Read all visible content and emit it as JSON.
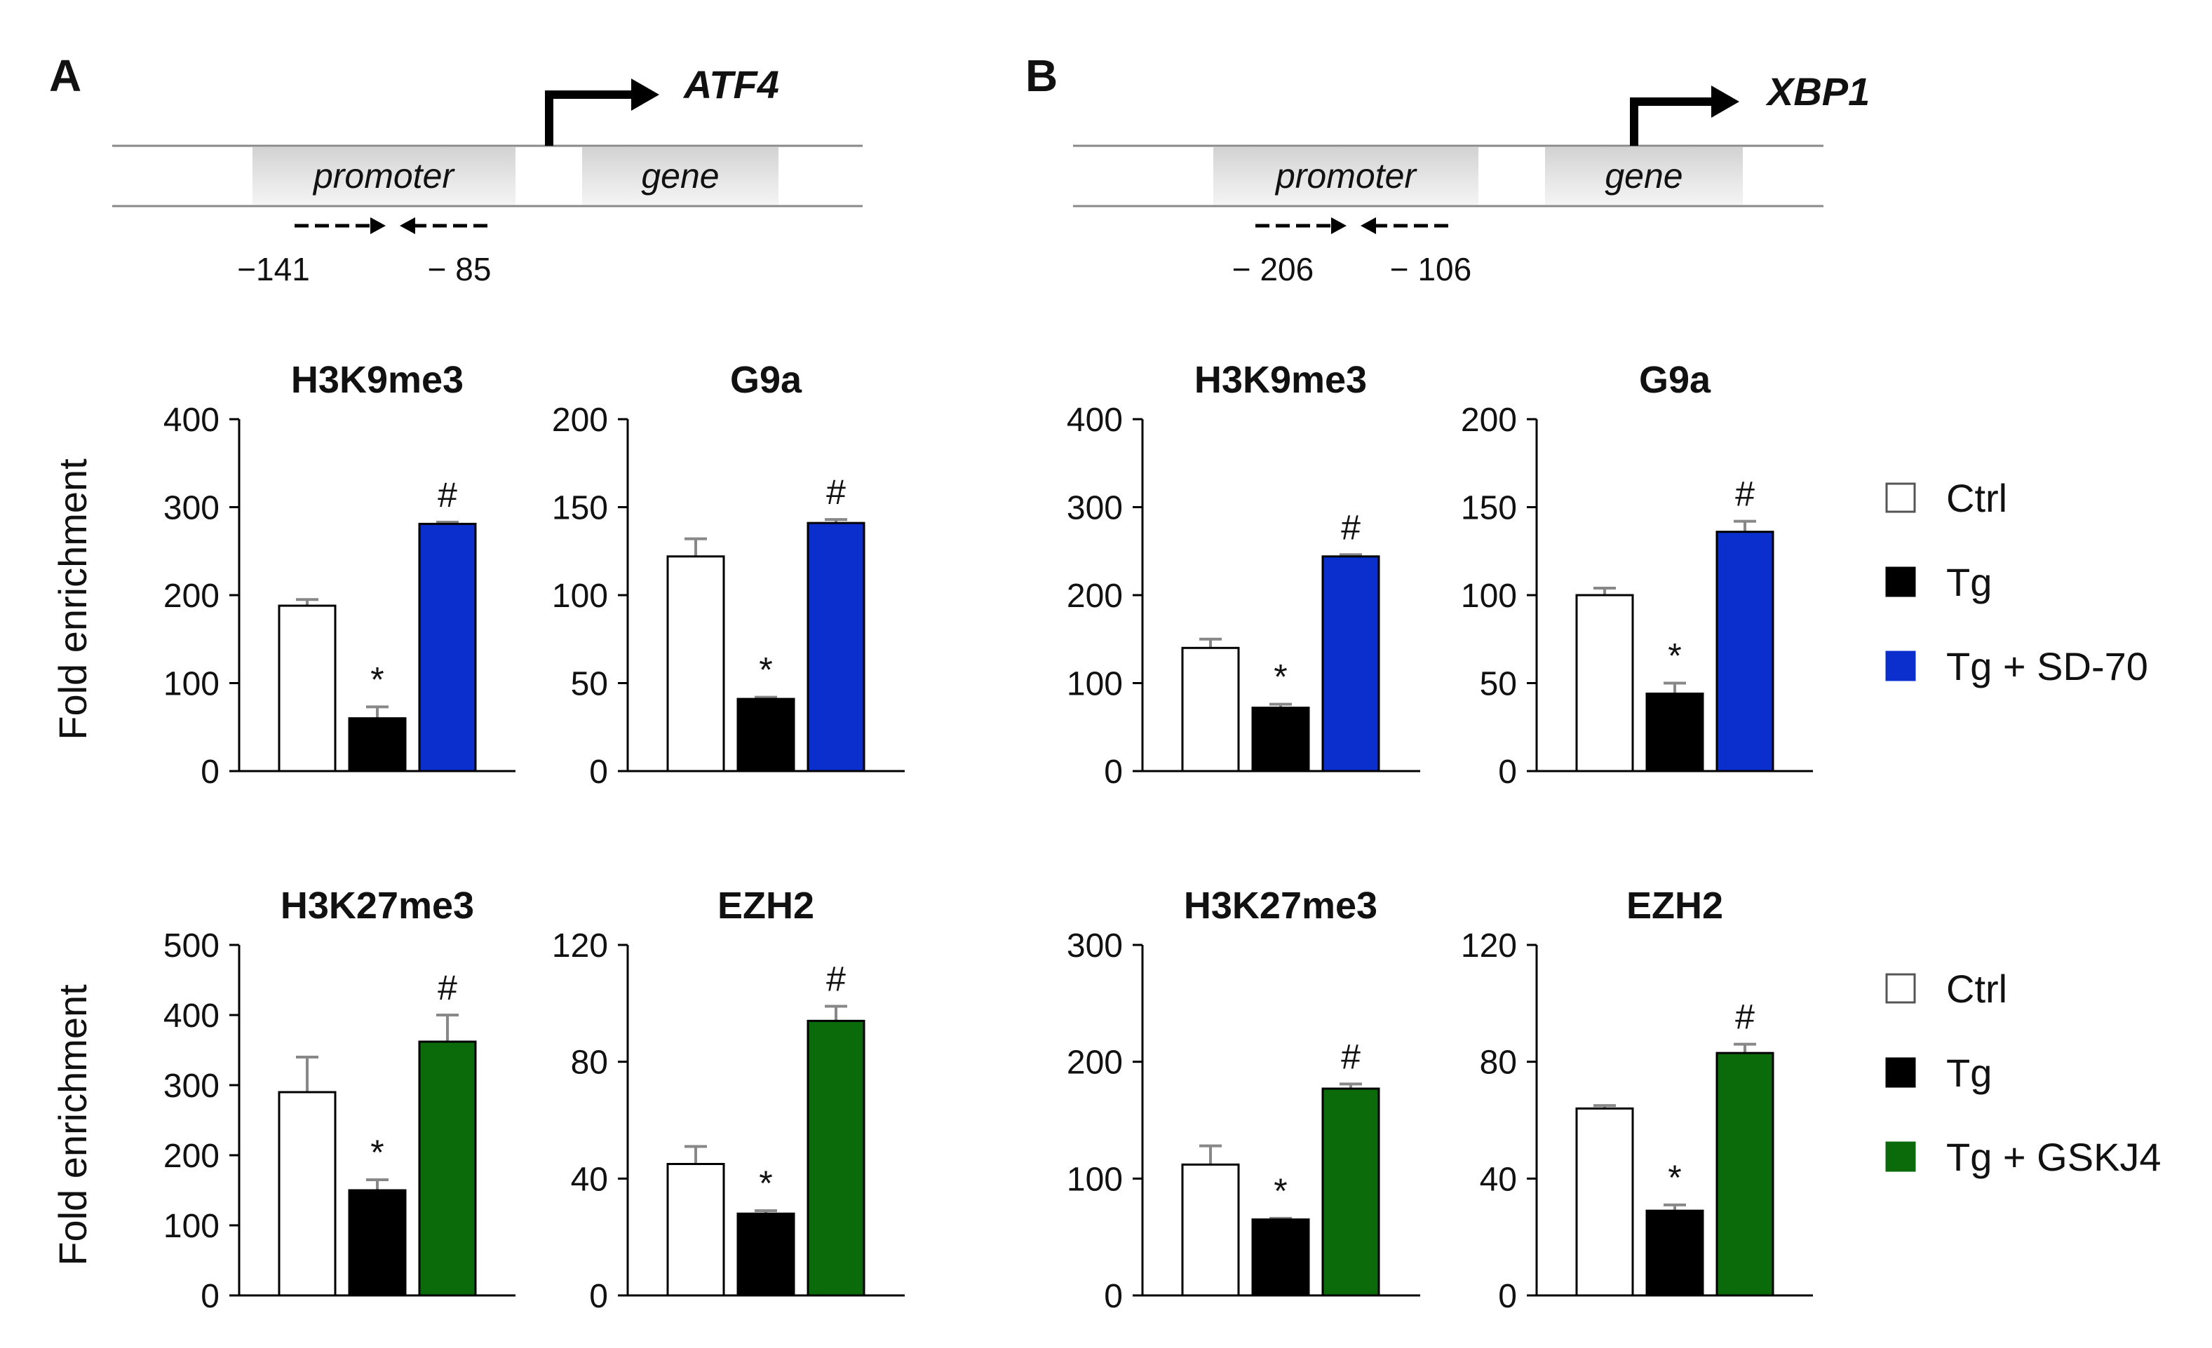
{
  "panels": [
    {
      "letter": "A",
      "gene_name": "ATF4",
      "promoter_label": "promoter",
      "gene_label": "gene",
      "primer_left": "−141",
      "primer_right": "− 85"
    },
    {
      "letter": "B",
      "gene_name": "XBP1",
      "promoter_label": "promoter",
      "gene_label": "gene",
      "primer_left": "− 206",
      "primer_right": "− 106"
    }
  ],
  "ylabel": "Fold enrichment",
  "legends": [
    {
      "items": [
        {
          "label": "Ctrl",
          "color": "#ffffff"
        },
        {
          "label": "Tg",
          "color": "#000000"
        },
        {
          "label": "Tg + SD-70",
          "color": "#0a2fcc"
        }
      ]
    },
    {
      "items": [
        {
          "label": "Ctrl",
          "color": "#ffffff"
        },
        {
          "label": "Tg",
          "color": "#000000"
        },
        {
          "label": "Tg + GSKJ4",
          "color": "#0b6b0b"
        }
      ]
    }
  ],
  "chart_data": [
    {
      "type": "bar",
      "panel": "A",
      "title": "H3K9me3",
      "ylabel": "Fold enrichment",
      "ylim": [
        0,
        400
      ],
      "yticks": [
        0,
        100,
        200,
        300,
        400
      ],
      "categories": [
        "Ctrl",
        "Tg",
        "Tg + SD-70"
      ],
      "values": [
        188,
        60,
        281
      ],
      "errors": [
        7,
        13,
        2
      ],
      "colors": [
        "#ffffff",
        "#000000",
        "#0a2fcc"
      ],
      "annotations": [
        "",
        "*",
        "#"
      ]
    },
    {
      "type": "bar",
      "panel": "A",
      "title": "G9a",
      "ylabel": "Fold enrichment",
      "ylim": [
        0,
        200
      ],
      "yticks": [
        0,
        50,
        100,
        150,
        200
      ],
      "categories": [
        "Ctrl",
        "Tg",
        "Tg + SD-70"
      ],
      "values": [
        122,
        41,
        141
      ],
      "errors": [
        10,
        1,
        2
      ],
      "colors": [
        "#ffffff",
        "#000000",
        "#0a2fcc"
      ],
      "annotations": [
        "",
        "*",
        "#"
      ]
    },
    {
      "type": "bar",
      "panel": "B",
      "title": "H3K9me3",
      "ylabel": "Fold enrichment",
      "ylim": [
        0,
        400
      ],
      "yticks": [
        0,
        100,
        200,
        300,
        400
      ],
      "categories": [
        "Ctrl",
        "Tg",
        "Tg + SD-70"
      ],
      "values": [
        140,
        72,
        244
      ],
      "errors": [
        10,
        4,
        2
      ],
      "colors": [
        "#ffffff",
        "#000000",
        "#0a2fcc"
      ],
      "annotations": [
        "",
        "*",
        "#"
      ]
    },
    {
      "type": "bar",
      "panel": "B",
      "title": "G9a",
      "ylabel": "Fold enrichment",
      "ylim": [
        0,
        200
      ],
      "yticks": [
        0,
        50,
        100,
        150,
        200
      ],
      "categories": [
        "Ctrl",
        "Tg",
        "Tg + SD-70"
      ],
      "values": [
        100,
        44,
        136
      ],
      "errors": [
        4,
        6,
        6
      ],
      "colors": [
        "#ffffff",
        "#000000",
        "#0a2fcc"
      ],
      "annotations": [
        "",
        "*",
        "#"
      ]
    },
    {
      "type": "bar",
      "panel": "A",
      "title": "H3K27me3",
      "ylabel": "Fold enrichment",
      "ylim": [
        0,
        500
      ],
      "yticks": [
        0,
        100,
        200,
        300,
        400,
        500
      ],
      "categories": [
        "Ctrl",
        "Tg",
        "Tg + GSKJ4"
      ],
      "values": [
        290,
        150,
        362
      ],
      "errors": [
        50,
        15,
        38
      ],
      "colors": [
        "#ffffff",
        "#000000",
        "#0b6b0b"
      ],
      "annotations": [
        "",
        "*",
        "#"
      ]
    },
    {
      "type": "bar",
      "panel": "A",
      "title": "EZH2",
      "ylabel": "Fold enrichment",
      "ylim": [
        0,
        120
      ],
      "yticks": [
        0,
        40,
        80,
        120
      ],
      "categories": [
        "Ctrl",
        "Tg",
        "Tg + GSKJ4"
      ],
      "values": [
        45,
        28,
        94
      ],
      "errors": [
        6,
        1,
        5
      ],
      "colors": [
        "#ffffff",
        "#000000",
        "#0b6b0b"
      ],
      "annotations": [
        "",
        "*",
        "#"
      ]
    },
    {
      "type": "bar",
      "panel": "B",
      "title": "H3K27me3",
      "ylabel": "Fold enrichment",
      "ylim": [
        0,
        300
      ],
      "yticks": [
        0,
        100,
        200,
        300
      ],
      "categories": [
        "Ctrl",
        "Tg",
        "Tg + GSKJ4"
      ],
      "values": [
        112,
        65,
        177
      ],
      "errors": [
        16,
        1,
        4
      ],
      "colors": [
        "#ffffff",
        "#000000",
        "#0b6b0b"
      ],
      "annotations": [
        "",
        "*",
        "#"
      ]
    },
    {
      "type": "bar",
      "panel": "B",
      "title": "EZH2",
      "ylabel": "Fold enrichment",
      "ylim": [
        0,
        120
      ],
      "yticks": [
        0,
        40,
        80,
        120
      ],
      "categories": [
        "Ctrl",
        "Tg",
        "Tg + GSKJ4"
      ],
      "values": [
        64,
        29,
        83
      ],
      "errors": [
        1,
        2,
        3
      ],
      "colors": [
        "#ffffff",
        "#000000",
        "#0b6b0b"
      ],
      "annotations": [
        "",
        "*",
        "#"
      ]
    }
  ]
}
